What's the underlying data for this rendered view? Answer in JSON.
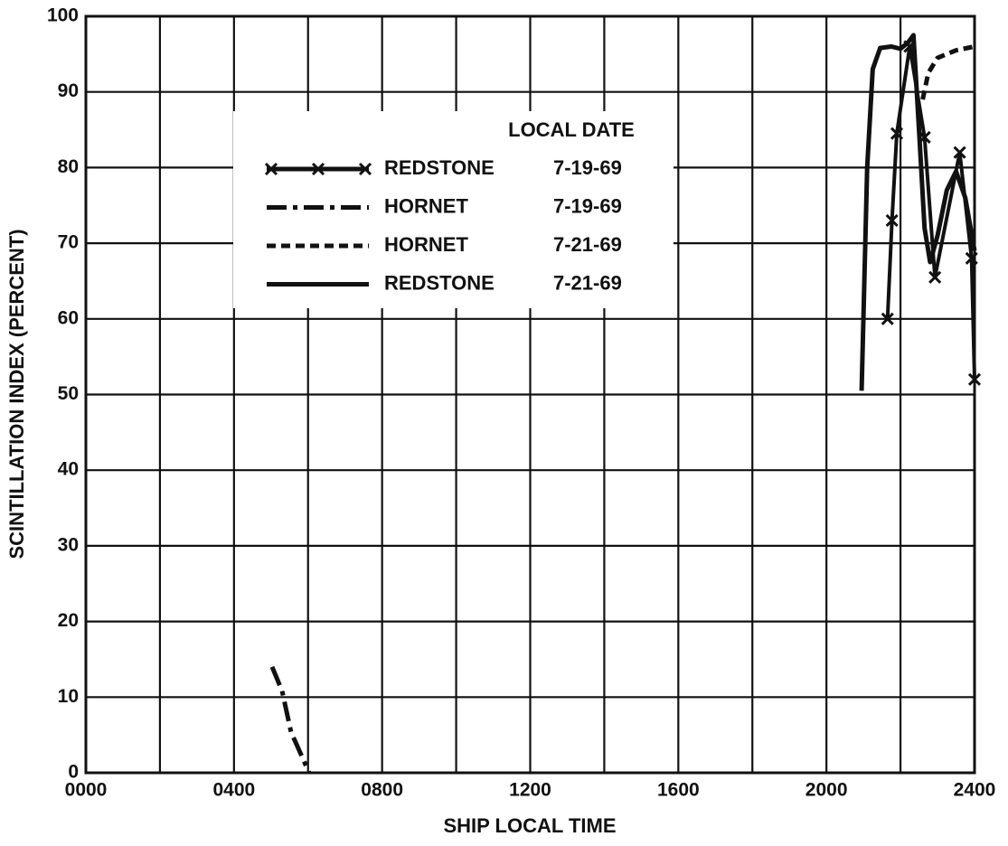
{
  "chart_data": {
    "type": "line",
    "x_label": "SHIP LOCAL TIME",
    "y_label": "SCINTILLATION INDEX (PERCENT)",
    "xlim": [
      0,
      24
    ],
    "ylim": [
      0,
      100
    ],
    "xticks": [
      {
        "value": 0,
        "label": "0000"
      },
      {
        "value": 4,
        "label": "0400"
      },
      {
        "value": 8,
        "label": "0800"
      },
      {
        "value": 12,
        "label": "1200"
      },
      {
        "value": 16,
        "label": "1600"
      },
      {
        "value": 20,
        "label": "2000"
      },
      {
        "value": 24,
        "label": "2400"
      }
    ],
    "x_minor_grid": [
      2,
      6,
      10,
      14,
      18,
      22
    ],
    "yticks": [
      0,
      10,
      20,
      30,
      40,
      50,
      60,
      70,
      80,
      90,
      100
    ],
    "grid": true,
    "legend_title": "LOCAL DATE",
    "series": [
      {
        "name": "REDSTONE",
        "date": "7-19-69",
        "style": "x-marker",
        "color": "#111111",
        "x": [
          21.65,
          21.77,
          21.9,
          22.25,
          22.65,
          22.93,
          23.6,
          23.92,
          24.0
        ],
        "values": [
          60,
          73,
          84.5,
          96,
          84,
          65.5,
          82,
          68,
          52
        ]
      },
      {
        "name": "HORNET",
        "date": "7-19-69",
        "style": "dash-dot",
        "color": "#111111",
        "x": [
          5.03,
          5.3,
          5.54,
          6.03
        ],
        "values": [
          14,
          10.8,
          5.4,
          0
        ]
      },
      {
        "name": "HORNET",
        "date": "7-21-69",
        "style": "dashed",
        "color": "#111111",
        "x": [
          22.6,
          22.75,
          23.0,
          23.5,
          24.0
        ],
        "values": [
          89,
          92.5,
          94.5,
          95.5,
          96
        ]
      },
      {
        "name": "REDSTONE",
        "date": "7-21-69",
        "style": "solid",
        "color": "#111111",
        "x": [
          20.95,
          21.1,
          21.25,
          21.45,
          21.75,
          22.0,
          22.2,
          22.35,
          22.5,
          22.65,
          22.8,
          23.0,
          23.25,
          23.5,
          23.75,
          24.0
        ],
        "values": [
          50.5,
          80,
          93,
          95.8,
          96,
          95.7,
          96.5,
          97.5,
          85,
          72,
          67.5,
          71,
          77,
          79.5,
          76,
          69
        ]
      }
    ]
  }
}
